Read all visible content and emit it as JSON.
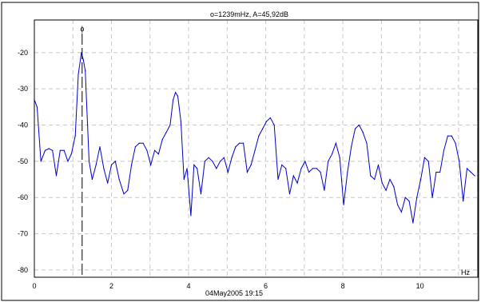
{
  "header": {
    "readout": "o=1239mHz, A=45,92dB"
  },
  "footer": {
    "timestamp": "04May2005  19:15"
  },
  "chart_data": {
    "type": "line",
    "xlabel": "Hz",
    "ylabel": "",
    "xlim": [
      0,
      11.5
    ],
    "ylim": [
      -82,
      -11
    ],
    "grid": true,
    "x_ticks": [
      0,
      2,
      4,
      6,
      8,
      10
    ],
    "x_tick_labels": [
      "0",
      "2",
      "4",
      "6",
      "8",
      "10"
    ],
    "y_ticks": [
      -20,
      -30,
      -40,
      -50,
      -60,
      -70,
      -80
    ],
    "y_tick_labels": [
      "-20",
      "-30",
      "-40",
      "-50",
      "-60",
      "-70",
      "-80"
    ],
    "cursor": {
      "x": 1.239,
      "marker": "ɸ"
    },
    "colors": {
      "series": "#0000cc",
      "grid": "#c8c8c8",
      "cursor": "#000000",
      "frame": "#000000"
    },
    "series": [
      {
        "x": [
          0,
          0.07,
          0.17,
          0.28,
          0.38,
          0.47,
          0.57,
          0.67,
          0.77,
          0.87,
          0.96,
          1.06,
          1.14,
          1.22,
          1.27,
          1.32,
          1.42,
          1.5,
          1.6,
          1.7,
          1.8,
          1.9,
          2.0,
          2.1,
          2.2,
          2.32,
          2.42,
          2.52,
          2.62,
          2.72,
          2.82,
          2.92,
          3.02,
          3.12,
          3.22,
          3.32,
          3.42,
          3.52,
          3.6,
          3.66,
          3.72,
          3.8,
          3.88,
          3.96,
          4.06,
          4.14,
          4.22,
          4.32,
          4.42,
          4.52,
          4.62,
          4.72,
          4.82,
          4.92,
          5.02,
          5.12,
          5.22,
          5.32,
          5.42,
          5.52,
          5.62,
          5.72,
          5.82,
          5.92,
          6.02,
          6.12,
          6.22,
          6.32,
          6.42,
          6.52,
          6.62,
          6.72,
          6.82,
          6.92,
          7.02,
          7.12,
          7.22,
          7.32,
          7.42,
          7.52,
          7.62,
          7.72,
          7.82,
          7.92,
          8.02,
          8.12,
          8.22,
          8.32,
          8.42,
          8.52,
          8.62,
          8.72,
          8.82,
          8.92,
          9.02,
          9.12,
          9.22,
          9.32,
          9.42,
          9.52,
          9.62,
          9.72,
          9.82,
          9.92,
          10.02,
          10.12,
          10.22,
          10.32,
          10.42,
          10.52,
          10.62,
          10.72,
          10.82,
          10.92,
          11.02,
          11.12,
          11.22,
          11.32,
          11.42
        ],
        "y": [
          -33,
          -35,
          -50,
          -47,
          -46.5,
          -47,
          -54,
          -47,
          -47,
          -50,
          -48,
          -43,
          -26,
          -20,
          -22,
          -25,
          -50,
          -55,
          -51,
          -46,
          -52,
          -56,
          -51,
          -50,
          -55,
          -59,
          -58,
          -51,
          -46,
          -45,
          -45,
          -47,
          -51,
          -47,
          -48,
          -44,
          -42,
          -40,
          -33,
          -31,
          -32,
          -39,
          -55,
          -52,
          -65,
          -51,
          -52,
          -59,
          -50,
          -49,
          -50,
          -52,
          -50,
          -49,
          -53,
          -49,
          -46,
          -45,
          -45,
          -53,
          -51,
          -47,
          -43,
          -41,
          -39,
          -38,
          -40,
          -55,
          -51,
          -52,
          -59,
          -54,
          -56,
          -52,
          -50,
          -53,
          -52,
          -52,
          -53,
          -58,
          -50,
          -48,
          -45,
          -49,
          -62,
          -53,
          -46,
          -41,
          -40,
          -42,
          -45,
          -54,
          -55,
          -51,
          -56,
          -58,
          -55,
          -57,
          -62,
          -64,
          -60,
          -61,
          -67,
          -60,
          -55,
          -49,
          -50,
          -60,
          -53,
          -53,
          -47,
          -43,
          -43,
          -45,
          -50,
          -61,
          -52,
          -53,
          -54
        ]
      }
    ]
  }
}
